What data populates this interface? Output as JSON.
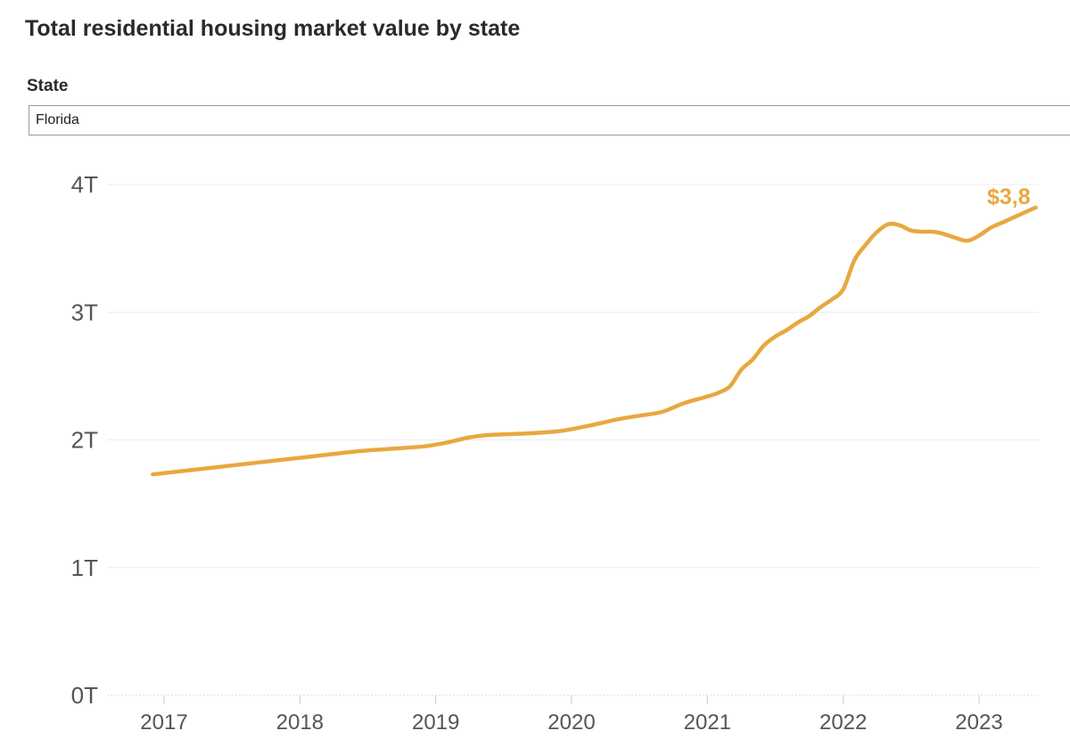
{
  "title": "Total residential housing market value by state",
  "filter": {
    "label": "State",
    "selected": "Florida"
  },
  "chart_data": {
    "type": "line",
    "title": "Total residential housing market value by state",
    "xlabel": "",
    "ylabel": "",
    "y_ticks": [
      "0T",
      "1T",
      "2T",
      "3T",
      "4T"
    ],
    "y_tick_values": [
      0,
      1,
      2,
      3,
      4
    ],
    "x_ticks": [
      "2017",
      "2018",
      "2019",
      "2020",
      "2021",
      "2022",
      "2023"
    ],
    "x_tick_values": [
      "2017-01",
      "2018-01",
      "2019-01",
      "2020-01",
      "2021-01",
      "2022-01",
      "2023-01"
    ],
    "ylim": [
      0,
      4.2
    ],
    "xlim": [
      "2016-06",
      "2023-06"
    ],
    "grid": true,
    "end_label": "$3,8",
    "color": "#e8a840",
    "x": [
      "2016-12",
      "2017-03",
      "2017-06",
      "2017-09",
      "2017-12",
      "2018-03",
      "2018-06",
      "2018-09",
      "2018-12",
      "2019-02",
      "2019-04",
      "2019-06",
      "2019-09",
      "2019-12",
      "2020-03",
      "2020-05",
      "2020-07",
      "2020-09",
      "2020-11",
      "2021-01",
      "2021-02",
      "2021-03",
      "2021-04",
      "2021-05",
      "2021-06",
      "2021-07",
      "2021-08",
      "2021-09",
      "2021-10",
      "2021-11",
      "2021-12",
      "2022-01",
      "2022-02",
      "2022-03",
      "2022-04",
      "2022-05",
      "2022-06",
      "2022-07",
      "2022-08",
      "2022-09",
      "2022-10",
      "2022-11",
      "2022-12",
      "2023-01",
      "2023-02",
      "2023-03",
      "2023-04",
      "2023-05",
      "2023-06"
    ],
    "y": [
      1.73,
      1.76,
      1.79,
      1.82,
      1.85,
      1.88,
      1.91,
      1.93,
      1.95,
      1.98,
      2.02,
      2.04,
      2.05,
      2.07,
      2.12,
      2.16,
      2.19,
      2.22,
      2.29,
      2.34,
      2.37,
      2.42,
      2.55,
      2.63,
      2.74,
      2.81,
      2.86,
      2.92,
      2.97,
      3.04,
      3.1,
      3.18,
      3.41,
      3.53,
      3.63,
      3.69,
      3.68,
      3.64,
      3.63,
      3.63,
      3.61,
      3.58,
      3.56,
      3.6,
      3.66,
      3.7,
      3.74,
      3.78,
      3.82
    ]
  }
}
